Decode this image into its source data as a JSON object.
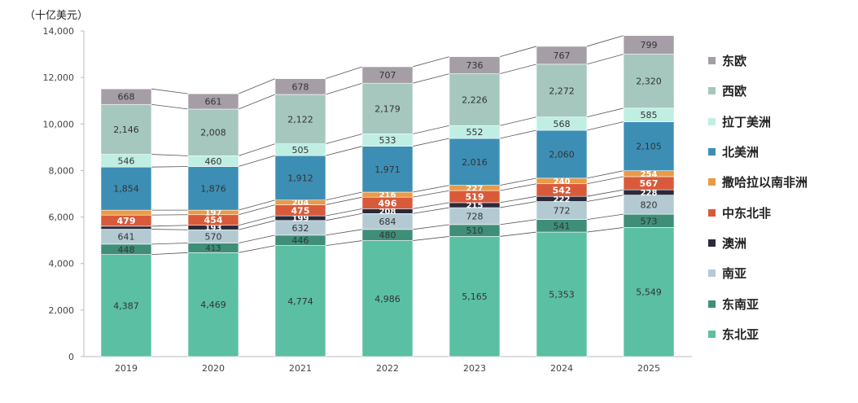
{
  "chart_data": {
    "type": "bar",
    "stacked": true,
    "ylabel": "（十亿美元）",
    "ylim": [
      0,
      14000
    ],
    "yticks": [
      0,
      2000,
      4000,
      6000,
      8000,
      10000,
      12000,
      14000
    ],
    "ytick_labels": [
      "0",
      "2,000",
      "4,000",
      "6,000",
      "8,000",
      "10,000",
      "12,000",
      "14,000"
    ],
    "categories": [
      "2019",
      "2020",
      "2021",
      "2022",
      "2023",
      "2024",
      "2025"
    ],
    "grid": false,
    "connector_lines": true,
    "legend_position": "right",
    "series": [
      {
        "name": "东北亚",
        "color": "#5bbfa3",
        "values": [
          4387,
          4469,
          4774,
          4986,
          5165,
          5353,
          5549
        ]
      },
      {
        "name": "东南亚",
        "color": "#3f8f78",
        "values": [
          448,
          413,
          446,
          480,
          510,
          541,
          573
        ]
      },
      {
        "name": "南亚",
        "color": "#b3cad3",
        "values": [
          641,
          570,
          632,
          684,
          728,
          772,
          820
        ]
      },
      {
        "name": "澳洲",
        "color": "#2a2a3a",
        "values": [
          null,
          193,
          199,
          208,
          215,
          222,
          228
        ]
      },
      {
        "name": "中东北非",
        "color": "#d95a3a",
        "values": [
          479,
          454,
          475,
          496,
          519,
          542,
          567
        ]
      },
      {
        "name": "撒哈拉以南非洲",
        "color": "#eb9a45",
        "values": [
          null,
          197,
          204,
          216,
          227,
          240,
          254
        ]
      },
      {
        "name": "北美洲",
        "color": "#3d8eb5",
        "values": [
          1854,
          1876,
          1912,
          1971,
          2016,
          2060,
          2105
        ]
      },
      {
        "name": "拉丁美洲",
        "color": "#bfeee3",
        "values": [
          546,
          460,
          505,
          533,
          552,
          568,
          585
        ]
      },
      {
        "name": "西欧",
        "color": "#a6c7bd",
        "values": [
          2146,
          2008,
          2122,
          2179,
          2226,
          2272,
          2320
        ]
      },
      {
        "name": "东欧",
        "color": "#a59ea6",
        "values": [
          668,
          661,
          678,
          707,
          736,
          767,
          799
        ]
      }
    ],
    "stack_gaps_2019": {
      "澳洲": 130,
      "撒哈拉以南非洲": 210
    },
    "unlabeled_segments": [
      {
        "series": "澳洲",
        "category": "2019"
      },
      {
        "series": "撒哈拉以南非洲",
        "category": "2019"
      }
    ],
    "legend_order": [
      "东欧",
      "西欧",
      "拉丁美洲",
      "北美洲",
      "撒哈拉以南非洲",
      "中东北非",
      "澳洲",
      "南亚",
      "东南亚",
      "东北亚"
    ]
  }
}
